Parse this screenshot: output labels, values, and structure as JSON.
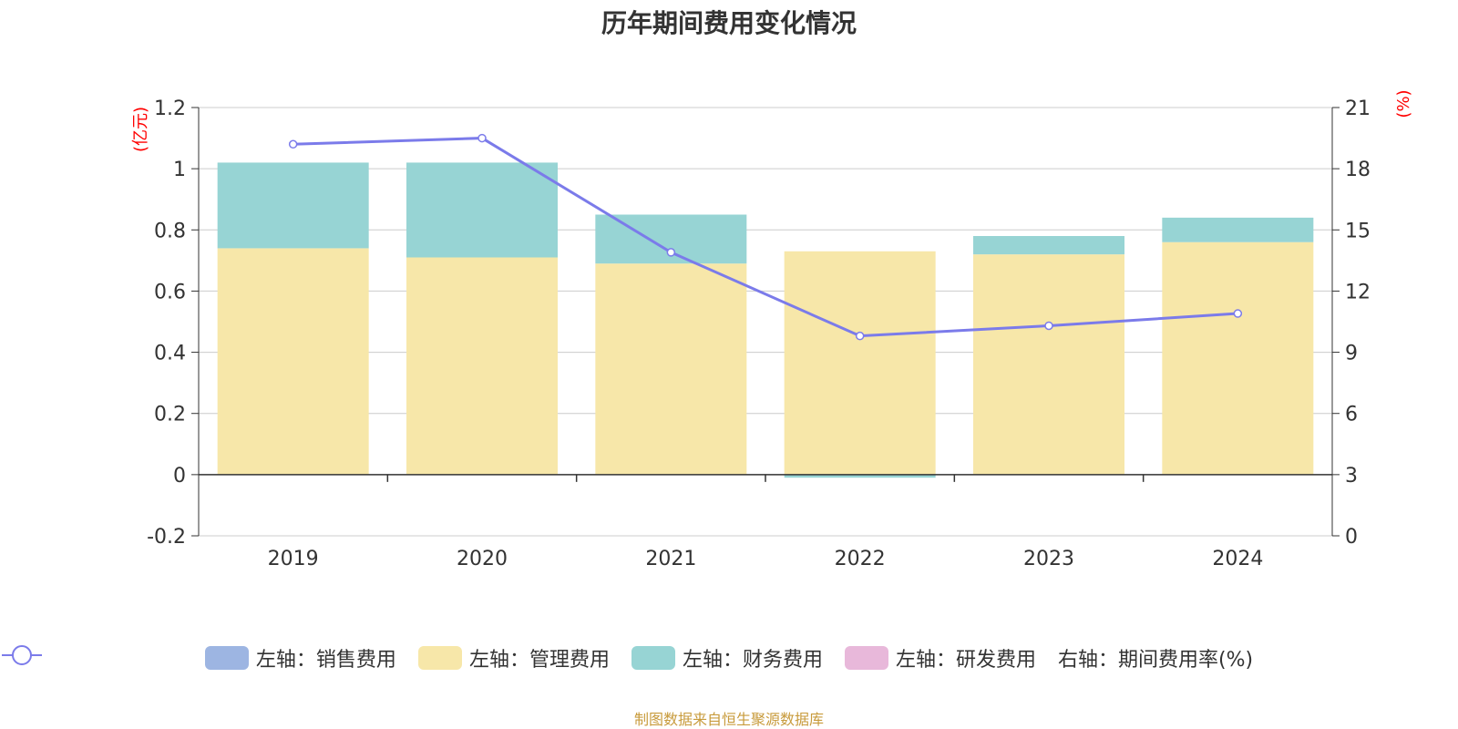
{
  "chart_data": {
    "type": "bar",
    "title": "历年期间费用变化情况",
    "categories": [
      "2019",
      "2020",
      "2021",
      "2022",
      "2023",
      "2024"
    ],
    "left_axis": {
      "unit_label": "(亿元)",
      "ylim": [
        -0.2,
        1.2
      ],
      "ticks": [
        "-0.2",
        "0",
        "0.2",
        "0.4",
        "0.6",
        "0.8",
        "1",
        "1.2"
      ]
    },
    "right_axis": {
      "unit_label": "(%)",
      "ylim": [
        0,
        21
      ],
      "ticks": [
        "0",
        "3",
        "6",
        "9",
        "12",
        "15",
        "18",
        "21"
      ]
    },
    "stacked": true,
    "series": [
      {
        "name": "左轴：销售费用",
        "type": "bar",
        "axis": "left",
        "values": [
          0,
          0,
          0,
          0,
          0,
          0
        ]
      },
      {
        "name": "左轴：管理费用",
        "type": "bar",
        "axis": "left",
        "values": [
          0.74,
          0.71,
          0.69,
          0.73,
          0.72,
          0.76
        ]
      },
      {
        "name": "左轴：财务费用",
        "type": "bar",
        "axis": "left",
        "values": [
          0.28,
          0.31,
          0.16,
          -0.01,
          0.06,
          0.08
        ]
      },
      {
        "name": "左轴：研发费用",
        "type": "bar",
        "axis": "left",
        "values": [
          0,
          0,
          0,
          0,
          0,
          0
        ]
      },
      {
        "name": "右轴：期间费用率(%)",
        "type": "line",
        "axis": "right",
        "values": [
          19.2,
          19.5,
          13.9,
          9.8,
          10.3,
          10.9
        ]
      }
    ],
    "grid": true,
    "legend_position": "bottom"
  },
  "colors": {
    "sales": "#9db5e2",
    "admin": "#f7e7a9",
    "finance": "#97d4d4",
    "rnd": "#e8b8da",
    "line": "#7b7bea",
    "unit_label": "#ff0000",
    "footer": "#c89b3c"
  },
  "footer": "制图数据来自恒生聚源数据库"
}
